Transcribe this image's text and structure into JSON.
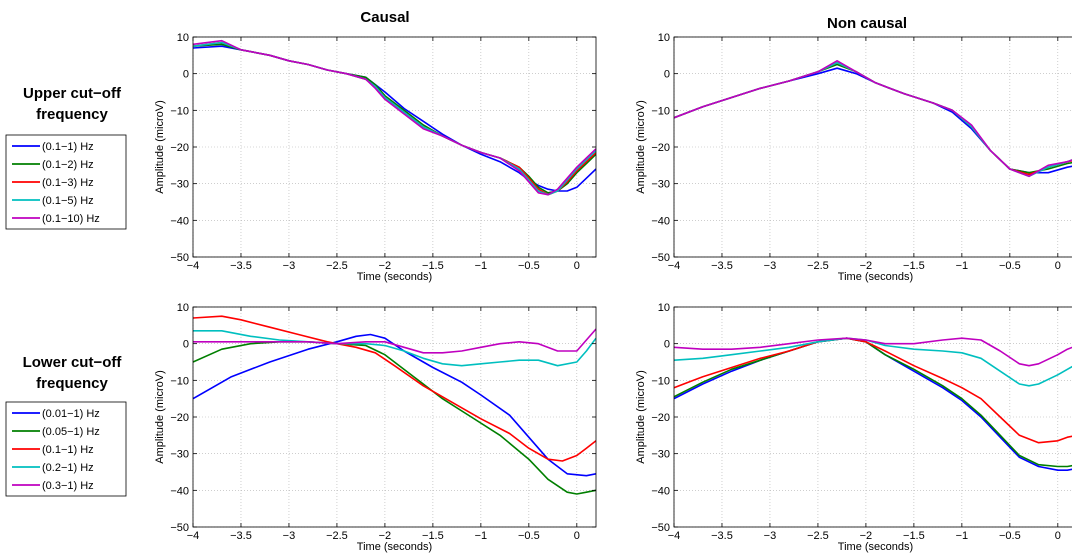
{
  "figure": {
    "col_titles": [
      "Causal",
      "Non causal"
    ],
    "row_titles": [
      [
        "Upper cut−off",
        "frequency"
      ],
      [
        "Lower cut−off",
        "frequency"
      ]
    ]
  },
  "chart_data": [
    {
      "type": "line",
      "title": "Causal",
      "xlabel": "Time (seconds)",
      "ylabel": "Amplitude (microV)",
      "xlim": [
        -4,
        0.2
      ],
      "ylim": [
        -50,
        10
      ],
      "grid": true,
      "xticks": [
        -4,
        -3.5,
        -3,
        -2.5,
        -2,
        -1.5,
        -1,
        -0.5,
        0
      ],
      "yticks": [
        10,
        0,
        -10,
        -20,
        -30,
        -40,
        -50
      ],
      "legend_title": [
        "Upper cut−off",
        "frequency"
      ],
      "series": [
        {
          "name": "(0.1−1) Hz",
          "color": "#0000ff",
          "x": [
            -4,
            -3.7,
            -3.5,
            -3.2,
            -3,
            -2.8,
            -2.6,
            -2.4,
            -2.2,
            -2,
            -1.8,
            -1.6,
            -1.4,
            -1.2,
            -1,
            -0.8,
            -0.6,
            -0.5,
            -0.4,
            -0.3,
            -0.2,
            -0.1,
            0,
            0.1,
            0.2
          ],
          "y": [
            7,
            7.5,
            6.5,
            5,
            3.5,
            2.5,
            1,
            0,
            -1,
            -5,
            -9.5,
            -13,
            -16.5,
            -19.5,
            -22,
            -24,
            -27,
            -29,
            -30.5,
            -31.5,
            -32,
            -32,
            -31,
            -28.5,
            -26
          ]
        },
        {
          "name": "(0.1−2) Hz",
          "color": "#007f00",
          "x": [
            -4,
            -3.7,
            -3.5,
            -3.2,
            -3,
            -2.8,
            -2.6,
            -2.4,
            -2.2,
            -2.1,
            -2,
            -1.8,
            -1.6,
            -1.4,
            -1.2,
            -1,
            -0.8,
            -0.6,
            -0.5,
            -0.4,
            -0.3,
            -0.2,
            -0.1,
            0,
            0.1,
            0.2
          ],
          "y": [
            7.5,
            8,
            6.5,
            5,
            3.5,
            2.5,
            1,
            0,
            -1,
            -3,
            -6,
            -10,
            -14,
            -17,
            -19.5,
            -21.5,
            -23,
            -25.5,
            -28,
            -31,
            -32.5,
            -32,
            -30,
            -27,
            -24.5,
            -22
          ]
        },
        {
          "name": "(0.1−3) Hz",
          "color": "#ff0000",
          "x": [
            -4,
            -3.7,
            -3.5,
            -3.2,
            -3,
            -2.8,
            -2.6,
            -2.4,
            -2.2,
            -2.1,
            -2,
            -1.8,
            -1.6,
            -1.4,
            -1.2,
            -1,
            -0.8,
            -0.6,
            -0.5,
            -0.4,
            -0.3,
            -0.2,
            -0.1,
            0,
            0.1,
            0.2
          ],
          "y": [
            7.5,
            8.5,
            6.5,
            5,
            3.5,
            2.5,
            1,
            0,
            -1.5,
            -3.5,
            -6.5,
            -10.5,
            -14.5,
            -17,
            -19.5,
            -21.5,
            -23,
            -25.5,
            -28.5,
            -31.5,
            -33,
            -32,
            -29.5,
            -26.5,
            -24,
            -21.5
          ]
        },
        {
          "name": "(0.1−5) Hz",
          "color": "#00bfbf",
          "x": [
            -4,
            -3.7,
            -3.5,
            -3.2,
            -3,
            -2.8,
            -2.6,
            -2.4,
            -2.2,
            -2.1,
            -2,
            -1.8,
            -1.6,
            -1.4,
            -1.2,
            -1,
            -0.8,
            -0.6,
            -0.5,
            -0.4,
            -0.3,
            -0.2,
            -0.1,
            0,
            0.1,
            0.2
          ],
          "y": [
            7.5,
            8.5,
            6.5,
            5,
            3.5,
            2.5,
            1,
            0,
            -1.5,
            -3.5,
            -6.5,
            -10.5,
            -14.5,
            -17,
            -19.5,
            -21.5,
            -23,
            -26,
            -29,
            -32,
            -33,
            -32,
            -29,
            -26,
            -23.5,
            -21
          ]
        },
        {
          "name": "(0.1−10) Hz",
          "color": "#bf00bf",
          "x": [
            -4,
            -3.7,
            -3.5,
            -3.2,
            -3,
            -2.8,
            -2.6,
            -2.4,
            -2.2,
            -2.1,
            -2,
            -1.8,
            -1.6,
            -1.4,
            -1.2,
            -1,
            -0.8,
            -0.6,
            -0.5,
            -0.4,
            -0.3,
            -0.2,
            -0.1,
            0,
            0.1,
            0.2
          ],
          "y": [
            8,
            9,
            6.5,
            5,
            3.5,
            2.5,
            1,
            0,
            -1.5,
            -4,
            -7,
            -11,
            -15,
            -17,
            -19.5,
            -21.5,
            -23,
            -26.5,
            -29.5,
            -32.5,
            -33,
            -31.5,
            -28.5,
            -25.5,
            -23,
            -20.5
          ]
        }
      ]
    },
    {
      "type": "line",
      "title": "Non causal",
      "xlabel": "Time (seconds)",
      "ylabel": "Amplitude (microV)",
      "xlim": [
        -4,
        0.2
      ],
      "ylim": [
        -50,
        10
      ],
      "grid": true,
      "xticks": [
        -4,
        -3.5,
        -3,
        -2.5,
        -2,
        -1.5,
        -1,
        -0.5,
        0
      ],
      "yticks": [
        10,
        0,
        -10,
        -20,
        -30,
        -40,
        -50
      ],
      "series": [
        {
          "name": "(0.1−1) Hz",
          "color": "#0000ff",
          "x": [
            -4,
            -3.7,
            -3.4,
            -3.1,
            -2.8,
            -2.5,
            -2.3,
            -2.1,
            -1.9,
            -1.6,
            -1.3,
            -1.1,
            -0.9,
            -0.7,
            -0.5,
            -0.3,
            -0.1,
            0.1,
            0.2
          ],
          "y": [
            -12,
            -9,
            -6.5,
            -4,
            -2,
            0,
            1.5,
            0,
            -2.5,
            -5.5,
            -8,
            -10.5,
            -15,
            -21,
            -26,
            -27,
            -27,
            -25.5,
            -25
          ]
        },
        {
          "name": "(0.1−2) Hz",
          "color": "#007f00",
          "x": [
            -4,
            -3.7,
            -3.4,
            -3.1,
            -2.8,
            -2.5,
            -2.3,
            -2.1,
            -1.9,
            -1.6,
            -1.3,
            -1.1,
            -0.9,
            -0.7,
            -0.5,
            -0.3,
            -0.1,
            0.1,
            0.2
          ],
          "y": [
            -12,
            -9,
            -6.5,
            -4,
            -2,
            0.5,
            2.5,
            0.5,
            -2.5,
            -5.5,
            -8,
            -10,
            -14.5,
            -21,
            -26,
            -27,
            -26,
            -24.5,
            -24
          ]
        },
        {
          "name": "(0.1−3) Hz",
          "color": "#ff0000",
          "x": [
            -4,
            -3.7,
            -3.4,
            -3.1,
            -2.8,
            -2.5,
            -2.3,
            -2.1,
            -1.9,
            -1.6,
            -1.3,
            -1.1,
            -0.9,
            -0.7,
            -0.5,
            -0.3,
            -0.1,
            0.1,
            0.2
          ],
          "y": [
            -12,
            -9,
            -6.5,
            -4,
            -2,
            0.5,
            3,
            0.5,
            -2.5,
            -5.5,
            -8,
            -10,
            -14.5,
            -21,
            -26,
            -27.5,
            -25.5,
            -24,
            -23.5
          ]
        },
        {
          "name": "(0.1−5) Hz",
          "color": "#00bfbf",
          "x": [
            -4,
            -3.7,
            -3.4,
            -3.1,
            -2.8,
            -2.5,
            -2.3,
            -2.1,
            -1.9,
            -1.6,
            -1.3,
            -1.1,
            -0.9,
            -0.7,
            -0.5,
            -0.3,
            -0.1,
            0.1,
            0.2
          ],
          "y": [
            -12,
            -9,
            -6.5,
            -4,
            -2,
            0.5,
            3,
            0.5,
            -2.5,
            -5.5,
            -8,
            -10,
            -14.5,
            -21,
            -26,
            -28,
            -25.5,
            -24,
            -23
          ]
        },
        {
          "name": "(0.1−10) Hz",
          "color": "#bf00bf",
          "x": [
            -4,
            -3.7,
            -3.4,
            -3.1,
            -2.8,
            -2.5,
            -2.3,
            -2.1,
            -1.9,
            -1.6,
            -1.3,
            -1.1,
            -0.9,
            -0.7,
            -0.5,
            -0.3,
            -0.1,
            0.1,
            0.2
          ],
          "y": [
            -12,
            -9,
            -6.5,
            -4,
            -2,
            0.5,
            3.5,
            0.5,
            -2.5,
            -5.5,
            -8,
            -10,
            -14,
            -21,
            -26,
            -28,
            -25,
            -24,
            -23
          ]
        }
      ]
    },
    {
      "type": "line",
      "title": "",
      "xlabel": "Time (seconds)",
      "ylabel": "Amplitude (microV)",
      "xlim": [
        -4,
        0.2
      ],
      "ylim": [
        -50,
        10
      ],
      "grid": true,
      "xticks": [
        -4,
        -3.5,
        -3,
        -2.5,
        -2,
        -1.5,
        -1,
        -0.5,
        0
      ],
      "yticks": [
        10,
        0,
        -10,
        -20,
        -30,
        -40,
        -50
      ],
      "legend_title": [
        "Lower cut−off",
        "frequency"
      ],
      "series": [
        {
          "name": "(0.01−1) Hz",
          "color": "#0000ff",
          "x": [
            -4,
            -3.6,
            -3.2,
            -2.8,
            -2.5,
            -2.3,
            -2.15,
            -2,
            -1.8,
            -1.5,
            -1.2,
            -1,
            -0.7,
            -0.5,
            -0.3,
            -0.1,
            0.1,
            0.2
          ],
          "y": [
            -15,
            -9,
            -5,
            -1.5,
            0.5,
            2,
            2.5,
            1.5,
            -2,
            -6.5,
            -10.5,
            -14,
            -19.5,
            -25.5,
            -31.5,
            -35.5,
            -36,
            -35.5
          ]
        },
        {
          "name": "(0.05−1) Hz",
          "color": "#007f00",
          "x": [
            -4,
            -3.7,
            -3.4,
            -3.1,
            -2.8,
            -2.5,
            -2.2,
            -2,
            -1.7,
            -1.4,
            -1.1,
            -0.8,
            -0.5,
            -0.3,
            -0.1,
            0,
            0.1,
            0.2
          ],
          "y": [
            -5,
            -1.5,
            0,
            0.5,
            0.5,
            0,
            -0.5,
            -3,
            -9,
            -15,
            -20,
            -25,
            -31.5,
            -37,
            -40.5,
            -41,
            -40.5,
            -40
          ]
        },
        {
          "name": "(0.1−1) Hz",
          "color": "#ff0000",
          "x": [
            -4,
            -3.7,
            -3.5,
            -3.2,
            -2.9,
            -2.6,
            -2.3,
            -2.1,
            -1.9,
            -1.6,
            -1.3,
            -1,
            -0.7,
            -0.5,
            -0.3,
            -0.15,
            0,
            0.1,
            0.2
          ],
          "y": [
            7,
            7.5,
            6.5,
            4.5,
            2.5,
            0.5,
            -1,
            -2.5,
            -6,
            -11.5,
            -16,
            -20.5,
            -24.5,
            -28.5,
            -31.5,
            -32,
            -30.5,
            -28.5,
            -26.5
          ]
        },
        {
          "name": "(0.2−1) Hz",
          "color": "#00bfbf",
          "x": [
            -4,
            -3.7,
            -3.4,
            -3.1,
            -2.8,
            -2.5,
            -2.2,
            -2,
            -1.8,
            -1.6,
            -1.4,
            -1.2,
            -1,
            -0.8,
            -0.6,
            -0.4,
            -0.2,
            0,
            0.1,
            0.2
          ],
          "y": [
            3.5,
            3.5,
            2,
            1,
            0.5,
            0,
            0,
            -0.5,
            -2,
            -4,
            -5.5,
            -6,
            -5.5,
            -5,
            -4.5,
            -4.5,
            -6,
            -5,
            -2,
            1.5
          ]
        },
        {
          "name": "(0.3−1) Hz",
          "color": "#bf00bf",
          "x": [
            -4,
            -3.7,
            -3.4,
            -3.1,
            -2.8,
            -2.5,
            -2.2,
            -2,
            -1.8,
            -1.6,
            -1.4,
            -1.2,
            -1,
            -0.8,
            -0.6,
            -0.4,
            -0.2,
            0,
            0.1,
            0.2
          ],
          "y": [
            0.5,
            0.5,
            0.5,
            0.5,
            0.5,
            0,
            0.5,
            0.5,
            -1,
            -2.5,
            -2.5,
            -2,
            -1,
            0,
            0.5,
            0,
            -2,
            -2,
            1,
            4
          ]
        }
      ]
    },
    {
      "type": "line",
      "title": "",
      "xlabel": "Time (seconds)",
      "ylabel": "Amplitude (microV)",
      "xlim": [
        -4,
        0.2
      ],
      "ylim": [
        -50,
        10
      ],
      "grid": true,
      "xticks": [
        -4,
        -3.5,
        -3,
        -2.5,
        -2,
        -1.5,
        -1,
        -0.5,
        0
      ],
      "yticks": [
        10,
        0,
        -10,
        -20,
        -30,
        -40,
        -50
      ],
      "series": [
        {
          "name": "(0.01−1) Hz",
          "color": "#0000ff",
          "x": [
            -4,
            -3.7,
            -3.4,
            -3.1,
            -2.8,
            -2.5,
            -2.2,
            -2,
            -1.8,
            -1.5,
            -1.2,
            -1,
            -0.8,
            -0.6,
            -0.4,
            -0.2,
            0,
            0.1,
            0.2
          ],
          "y": [
            -15,
            -11,
            -7.5,
            -4.5,
            -2,
            0.5,
            1.5,
            0.5,
            -3,
            -7.5,
            -12,
            -15.5,
            -20,
            -25.5,
            -31,
            -33.5,
            -34.5,
            -34.5,
            -34
          ]
        },
        {
          "name": "(0.05−1) Hz",
          "color": "#007f00",
          "x": [
            -4,
            -3.7,
            -3.4,
            -3.1,
            -2.8,
            -2.5,
            -2.2,
            -2,
            -1.8,
            -1.5,
            -1.2,
            -1,
            -0.8,
            -0.6,
            -0.4,
            -0.2,
            0,
            0.1,
            0.2
          ],
          "y": [
            -14.5,
            -10.5,
            -7,
            -4.5,
            -2,
            0.5,
            1.5,
            0.5,
            -3,
            -7,
            -11.5,
            -15,
            -19.5,
            -25,
            -30.5,
            -33,
            -33.5,
            -33.5,
            -33
          ]
        },
        {
          "name": "(0.1−1) Hz",
          "color": "#ff0000",
          "x": [
            -4,
            -3.7,
            -3.4,
            -3.1,
            -2.8,
            -2.5,
            -2.2,
            -2,
            -1.8,
            -1.5,
            -1.2,
            -1,
            -0.8,
            -0.6,
            -0.4,
            -0.2,
            0,
            0.1,
            0.2
          ],
          "y": [
            -12,
            -9,
            -6.5,
            -4,
            -2,
            0.5,
            1.5,
            0.5,
            -2,
            -6,
            -9.5,
            -12,
            -15,
            -20,
            -25,
            -27,
            -26.5,
            -25.5,
            -25
          ]
        },
        {
          "name": "(0.2−1) Hz",
          "color": "#00bfbf",
          "x": [
            -4,
            -3.7,
            -3.4,
            -3.1,
            -2.8,
            -2.5,
            -2.2,
            -2,
            -1.8,
            -1.5,
            -1.2,
            -1,
            -0.8,
            -0.6,
            -0.4,
            -0.3,
            -0.2,
            0,
            0.1,
            0.2
          ],
          "y": [
            -4.5,
            -4,
            -3,
            -2,
            -1,
            0.5,
            1.5,
            1,
            -0.5,
            -1.5,
            -2,
            -2.5,
            -4,
            -7.5,
            -11,
            -11.5,
            -11,
            -8.5,
            -7,
            -5.5
          ]
        },
        {
          "name": "(0.3−1) Hz",
          "color": "#bf00bf",
          "x": [
            -4,
            -3.7,
            -3.4,
            -3.1,
            -2.8,
            -2.5,
            -2.2,
            -2,
            -1.8,
            -1.5,
            -1.2,
            -1,
            -0.8,
            -0.6,
            -0.4,
            -0.3,
            -0.2,
            0,
            0.1,
            0.2
          ],
          "y": [
            -1,
            -1.5,
            -1.5,
            -1,
            0,
            1,
            1.5,
            1,
            0,
            0,
            1,
            1.5,
            1,
            -2,
            -5.5,
            -6,
            -5.5,
            -3,
            -1.5,
            -0.5
          ]
        }
      ]
    }
  ]
}
